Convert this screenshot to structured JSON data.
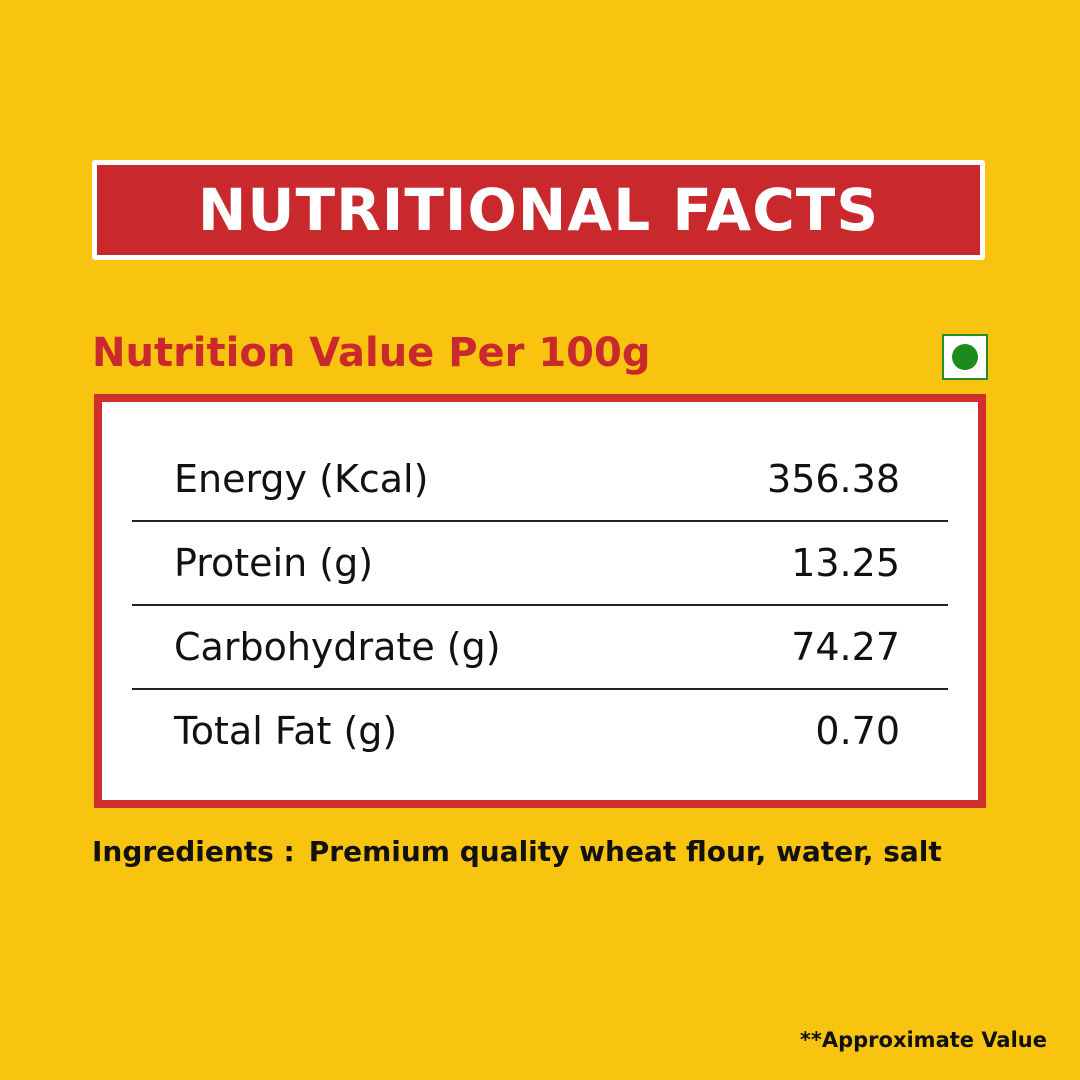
{
  "title": "NUTRITIONAL FACTS",
  "subtitle": "Nutrition Value Per 100g",
  "rows": [
    {
      "label": "Energy (Kcal)",
      "value": "356.38"
    },
    {
      "label": "Protein (g)",
      "value": "13.25"
    },
    {
      "label": "Carbohydrate (g)",
      "value": "74.27"
    },
    {
      "label": "Total Fat (g)",
      "value": "0.70"
    }
  ],
  "ingredients": {
    "label": "Ingredients :",
    "text": "Premium quality wheat flour, water, salt"
  },
  "note": "**Approximate Value",
  "veg_mark_color": "#1d8a1d"
}
